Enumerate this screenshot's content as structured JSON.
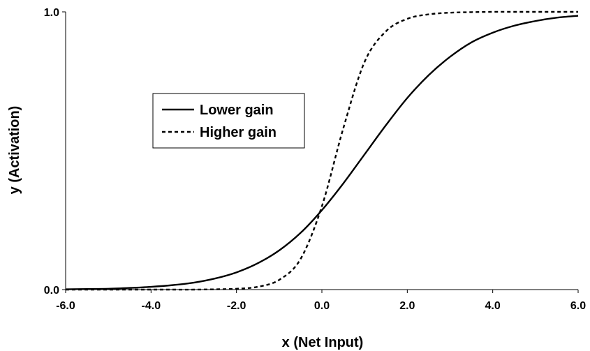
{
  "chart_data": {
    "type": "line",
    "title": "",
    "xlabel": "x (Net Input)",
    "ylabel": "y (Activation)",
    "xlim": [
      -6.0,
      6.0
    ],
    "ylim": [
      0.0,
      1.0
    ],
    "x_ticks": [
      -6.0,
      -4.0,
      -2.0,
      0.0,
      2.0,
      4.0,
      6.0
    ],
    "x_tick_labels": [
      "-6.0",
      "-4.0",
      "-2.0",
      "0.0",
      "2.0",
      "4.0",
      "6.0"
    ],
    "y_ticks": [
      0.0,
      1.0
    ],
    "y_tick_labels": [
      "0.0",
      "1.0"
    ],
    "grid": false,
    "legend_position": "upper-left",
    "x": [
      -6.0,
      -5.5,
      -5.0,
      -4.5,
      -4.0,
      -3.5,
      -3.0,
      -2.5,
      -2.0,
      -1.5,
      -1.0,
      -0.5,
      0.0,
      0.5,
      1.0,
      1.5,
      2.0,
      2.5,
      3.0,
      3.5,
      4.0,
      4.5,
      5.0,
      5.5,
      6.0
    ],
    "series": [
      {
        "name": "Lower gain",
        "style": "solid",
        "values": [
          0.001,
          0.002,
          0.003,
          0.006,
          0.01,
          0.016,
          0.025,
          0.04,
          0.062,
          0.095,
          0.141,
          0.204,
          0.286,
          0.382,
          0.487,
          0.592,
          0.69,
          0.772,
          0.838,
          0.89,
          0.925,
          0.95,
          0.967,
          0.979,
          0.986
        ]
      },
      {
        "name": "Higher gain",
        "style": "dashed",
        "values": [
          0.0,
          0.0,
          0.0,
          0.0,
          0.0,
          0.0,
          0.0,
          0.001,
          0.003,
          0.01,
          0.035,
          0.11,
          0.3,
          0.58,
          0.82,
          0.93,
          0.975,
          0.991,
          0.997,
          0.999,
          1.0,
          1.0,
          1.0,
          1.0,
          1.0
        ]
      }
    ]
  },
  "colors": {
    "line": "#000000",
    "background": "#ffffff"
  }
}
